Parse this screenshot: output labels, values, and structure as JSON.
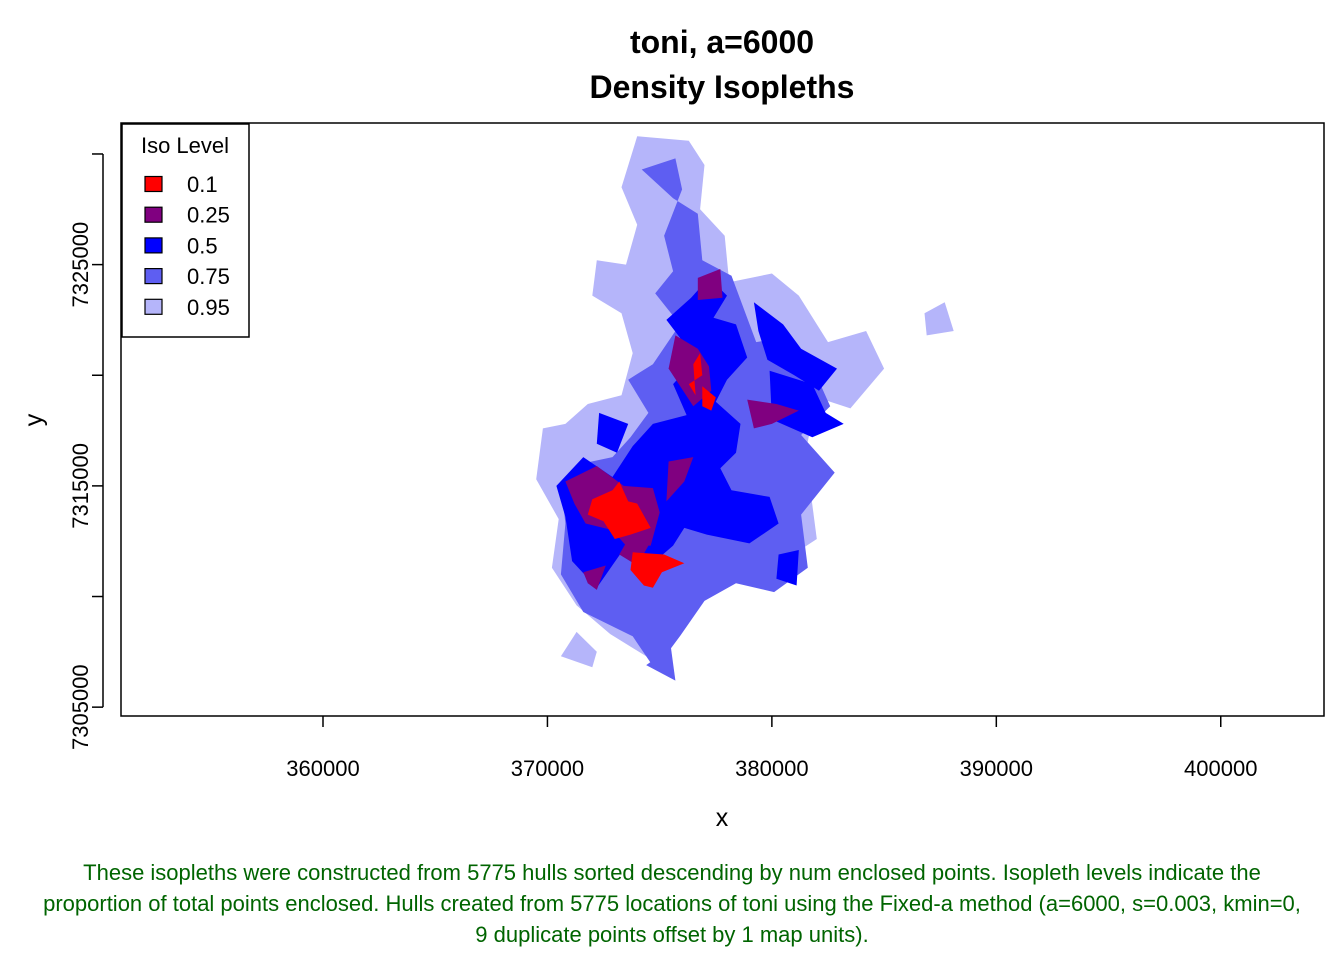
{
  "chart_data": {
    "type": "area",
    "title": "toni, a=6000",
    "subtitle": "Density Isopleths",
    "xlabel": "x",
    "ylabel": "y",
    "xlim": [
      351000,
      404600
    ],
    "ylim": [
      7304600,
      7331400
    ],
    "x_ticks": [
      360000,
      370000,
      380000,
      390000,
      400000
    ],
    "x_tick_labels": [
      "360000",
      "370000",
      "380000",
      "390000",
      "400000"
    ],
    "y_ticks": [
      7305000,
      7310000,
      7315000,
      7320000,
      7325000,
      7330000
    ],
    "y_tick_labels": [
      "7305000",
      "",
      "7315000",
      "",
      "7325000",
      ""
    ],
    "grid": false,
    "legend": {
      "title": "Iso Level",
      "position": "top-left",
      "entries": [
        {
          "label": "0.1",
          "color": "#ff0000"
        },
        {
          "label": "0.25",
          "color": "#800080"
        },
        {
          "label": "0.5",
          "color": "#0000ff"
        },
        {
          "label": "0.75",
          "color": "#5e5ef2"
        },
        {
          "label": "0.95",
          "color": "#b5b5fa"
        }
      ]
    },
    "series": [
      {
        "level": "0.95",
        "color": "#b5b5fa",
        "polygons": [
          [
            [
              374000,
              7330800
            ],
            [
              376300,
              7330600
            ],
            [
              377000,
              7329500
            ],
            [
              376800,
              7327500
            ],
            [
              377900,
              7326300
            ],
            [
              378100,
              7324200
            ],
            [
              380000,
              7324600
            ],
            [
              381200,
              7323600
            ],
            [
              382500,
              7321500
            ],
            [
              384200,
              7322000
            ],
            [
              385000,
              7320300
            ],
            [
              383500,
              7318500
            ],
            [
              382000,
              7319000
            ],
            [
              381500,
              7316500
            ],
            [
              382000,
              7312600
            ],
            [
              379000,
              7310600
            ],
            [
              377200,
              7310800
            ],
            [
              376500,
              7309300
            ],
            [
              374400,
              7307300
            ],
            [
              372800,
              7308300
            ],
            [
              371300,
              7309600
            ],
            [
              370200,
              7311300
            ],
            [
              370500,
              7313500
            ],
            [
              369500,
              7315300
            ],
            [
              369800,
              7317600
            ],
            [
              370800,
              7317800
            ],
            [
              371800,
              7318700
            ],
            [
              373300,
              7319100
            ],
            [
              373800,
              7321000
            ],
            [
              373300,
              7322800
            ],
            [
              372000,
              7323600
            ],
            [
              372200,
              7325200
            ],
            [
              373500,
              7325000
            ],
            [
              374000,
              7326800
            ],
            [
              373300,
              7328500
            ]
          ],
          [
            [
              371300,
              7308400
            ],
            [
              372200,
              7307500
            ],
            [
              372000,
              7306800
            ],
            [
              370600,
              7307300
            ]
          ],
          [
            [
              386800,
              7322800
            ],
            [
              387700,
              7323300
            ],
            [
              388100,
              7322000
            ],
            [
              386900,
              7321800
            ]
          ]
        ]
      },
      {
        "level": "0.75",
        "color": "#5e5ef2",
        "polygons": [
          [
            [
              374200,
              7329300
            ],
            [
              375700,
              7329800
            ],
            [
              376000,
              7328400
            ],
            [
              375200,
              7326300
            ],
            [
              375600,
              7324700
            ],
            [
              374800,
              7323700
            ],
            [
              375900,
              7322300
            ],
            [
              374700,
              7320500
            ],
            [
              373600,
              7319800
            ],
            [
              374500,
              7318300
            ],
            [
              373700,
              7317200
            ],
            [
              372900,
              7316300
            ],
            [
              371500,
              7316000
            ],
            [
              370600,
              7315200
            ],
            [
              370800,
              7313300
            ],
            [
              370600,
              7311000
            ],
            [
              371600,
              7309300
            ],
            [
              373800,
              7308200
            ],
            [
              374800,
              7306700
            ],
            [
              375900,
              7308200
            ],
            [
              377000,
              7309800
            ],
            [
              378400,
              7310600
            ],
            [
              380100,
              7310200
            ],
            [
              381600,
              7311300
            ],
            [
              381300,
              7313700
            ],
            [
              382800,
              7315600
            ],
            [
              381300,
              7317300
            ],
            [
              382600,
              7318600
            ],
            [
              381800,
              7320400
            ],
            [
              380600,
              7321700
            ],
            [
              379300,
              7321500
            ],
            [
              378200,
              7324500
            ],
            [
              376900,
              7325200
            ],
            [
              376700,
              7327300
            ],
            [
              375600,
              7328000
            ]
          ],
          [
            [
              374400,
              7306900
            ],
            [
              375700,
              7306200
            ],
            [
              375500,
              7307700
            ]
          ]
        ]
      },
      {
        "level": "0.5",
        "color": "#0000ff",
        "polygons": [
          [
            [
              375300,
              7322500
            ],
            [
              376400,
              7323500
            ],
            [
              377200,
              7324400
            ],
            [
              378000,
              7323600
            ],
            [
              377400,
              7322600
            ],
            [
              378400,
              7322300
            ],
            [
              378900,
              7320800
            ],
            [
              378000,
              7319800
            ],
            [
              377500,
              7318800
            ],
            [
              378600,
              7317800
            ],
            [
              378400,
              7316500
            ],
            [
              377700,
              7315800
            ],
            [
              378200,
              7314800
            ],
            [
              379900,
              7314500
            ],
            [
              380300,
              7313300
            ],
            [
              379000,
              7312400
            ],
            [
              377100,
              7312800
            ],
            [
              376100,
              7313100
            ],
            [
              375600,
              7312300
            ],
            [
              374800,
              7311600
            ],
            [
              373300,
              7312000
            ],
            [
              372200,
              7310400
            ],
            [
              371100,
              7311600
            ],
            [
              370800,
              7313600
            ],
            [
              370400,
              7315000
            ],
            [
              371600,
              7316300
            ],
            [
              372900,
              7315400
            ],
            [
              373800,
              7316800
            ],
            [
              374700,
              7317800
            ],
            [
              376200,
              7318200
            ],
            [
              375600,
              7319600
            ],
            [
              376500,
              7320600
            ],
            [
              375900,
              7321700
            ]
          ],
          [
            [
              379200,
              7323300
            ],
            [
              380500,
              7322300
            ],
            [
              381300,
              7321200
            ],
            [
              382900,
              7320300
            ],
            [
              382100,
              7319300
            ],
            [
              381000,
              7320000
            ],
            [
              379800,
              7320700
            ],
            [
              379400,
              7322000
            ]
          ],
          [
            [
              379900,
              7320200
            ],
            [
              381800,
              7319600
            ],
            [
              382400,
              7318300
            ],
            [
              383200,
              7317800
            ],
            [
              381800,
              7317200
            ],
            [
              380000,
              7318000
            ]
          ],
          [
            [
              380300,
              7311900
            ],
            [
              381200,
              7312100
            ],
            [
              381100,
              7310500
            ],
            [
              380200,
              7310800
            ]
          ],
          [
            [
              372300,
              7318300
            ],
            [
              373600,
              7317800
            ],
            [
              373100,
              7316500
            ],
            [
              372200,
              7316900
            ]
          ]
        ]
      },
      {
        "level": "0.25",
        "color": "#800080",
        "polygons": [
          [
            [
              376700,
              7324400
            ],
            [
              377700,
              7324800
            ],
            [
              377800,
              7323500
            ],
            [
              376700,
              7323400
            ]
          ],
          [
            [
              375700,
              7321800
            ],
            [
              376700,
              7321200
            ],
            [
              377200,
              7320400
            ],
            [
              377300,
              7319300
            ],
            [
              376500,
              7318600
            ],
            [
              375400,
              7320300
            ]
          ],
          [
            [
              378900,
              7318900
            ],
            [
              380200,
              7318700
            ],
            [
              381200,
              7318400
            ],
            [
              380000,
              7317800
            ],
            [
              379200,
              7317600
            ]
          ],
          [
            [
              375400,
              7316100
            ],
            [
              376500,
              7316300
            ],
            [
              376100,
              7315200
            ],
            [
              375300,
              7314300
            ]
          ],
          [
            [
              370800,
              7315200
            ],
            [
              372200,
              7315900
            ],
            [
              373400,
              7315000
            ],
            [
              374700,
              7314900
            ],
            [
              375000,
              7313800
            ],
            [
              374600,
              7312300
            ],
            [
              373500,
              7312300
            ],
            [
              372900,
              7313000
            ],
            [
              371700,
              7313300
            ],
            [
              371200,
              7314200
            ]
          ],
          [
            [
              371600,
              7311100
            ],
            [
              372600,
              7311400
            ],
            [
              372200,
              7310300
            ],
            [
              371800,
              7310600
            ]
          ],
          [
            [
              373600,
              7312600
            ],
            [
              374500,
              7312300
            ],
            [
              374000,
              7311400
            ],
            [
              373200,
              7311900
            ]
          ]
        ]
      },
      {
        "level": "0.1",
        "color": "#ff0000",
        "polygons": [
          [
            [
              376500,
              7320500
            ],
            [
              376800,
              7321000
            ],
            [
              376900,
              7320000
            ],
            [
              376300,
              7319600
            ],
            [
              376600,
              7319100
            ]
          ],
          [
            [
              376900,
              7319500
            ],
            [
              377500,
              7319000
            ],
            [
              377300,
              7318400
            ],
            [
              376900,
              7318600
            ]
          ],
          [
            [
              372000,
              7314400
            ],
            [
              372900,
              7314800
            ],
            [
              373200,
              7315200
            ],
            [
              373600,
              7314300
            ],
            [
              374000,
              7314200
            ],
            [
              374600,
              7313100
            ],
            [
              373700,
              7312800
            ],
            [
              373000,
              7312600
            ],
            [
              372500,
              7313400
            ],
            [
              371800,
              7313700
            ]
          ],
          [
            [
              373800,
              7312000
            ],
            [
              375200,
              7311900
            ],
            [
              376100,
              7311500
            ],
            [
              375100,
              7311100
            ],
            [
              374700,
              7310400
            ],
            [
              374300,
              7310500
            ],
            [
              373700,
              7311200
            ]
          ]
        ]
      }
    ]
  },
  "caption": "These isopleths were constructed from 5775 hulls sorted descending by num enclosed points. Isopleth levels indicate the proportion of total points enclosed. Hulls created from 5775 locations of toni using the Fixed-a method (a=6000, s=0.003, kmin=0, 9 duplicate points offset by 1 map units)."
}
